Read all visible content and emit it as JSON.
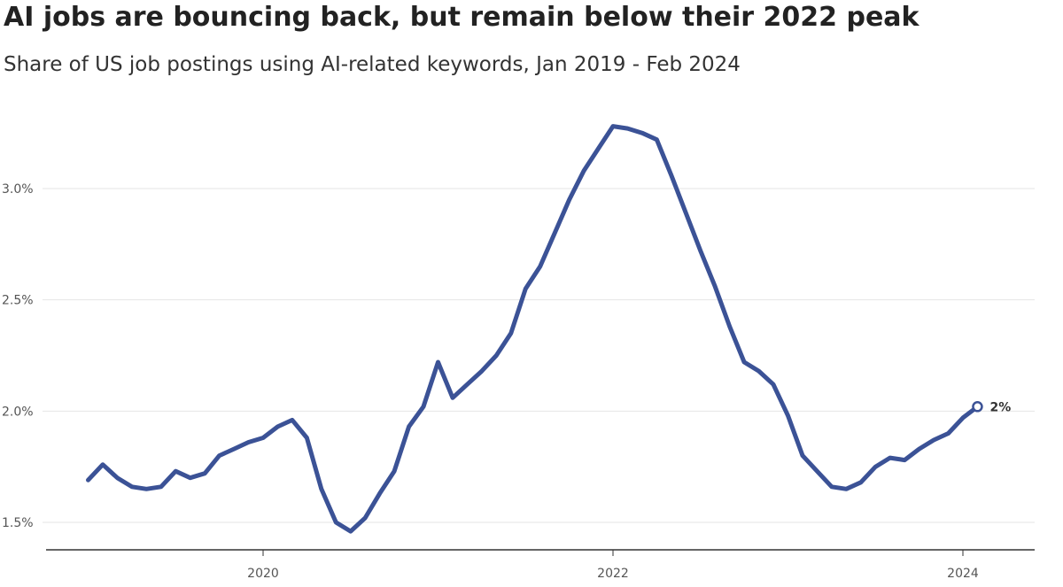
{
  "chart_data": {
    "type": "line",
    "title": "AI jobs are bouncing back, but remain below their 2022 peak",
    "subtitle": "Share of US job postings using AI-related keywords, Jan 2019 - Feb 2024",
    "xlabel": "",
    "ylabel": "",
    "x_range": [
      "2019-01",
      "2024-03"
    ],
    "ylim": [
      1.4,
      3.4
    ],
    "y_ticks": [
      {
        "value": 1.5,
        "label": "1.5%"
      },
      {
        "value": 2.0,
        "label": "2.0%"
      },
      {
        "value": 2.5,
        "label": "2.5%"
      },
      {
        "value": 3.0,
        "label": "3.0%"
      }
    ],
    "x_ticks": [
      {
        "date": "2020-01",
        "label": "2020"
      },
      {
        "date": "2022-01",
        "label": "2022"
      },
      {
        "date": "2024-01",
        "label": "2024"
      }
    ],
    "grid": "horizontal",
    "line_color": "#3b5296",
    "end_label": "2%",
    "series": [
      {
        "x": [
          "2019-01",
          "2019-02",
          "2019-03",
          "2019-04",
          "2019-05",
          "2019-06",
          "2019-07",
          "2019-08",
          "2019-09",
          "2019-10",
          "2019-11",
          "2019-12",
          "2020-01",
          "2020-02",
          "2020-03",
          "2020-04",
          "2020-05",
          "2020-06",
          "2020-07",
          "2020-08",
          "2020-09",
          "2020-10",
          "2020-11",
          "2020-12",
          "2021-01",
          "2021-02",
          "2021-03",
          "2021-04",
          "2021-05",
          "2021-06",
          "2021-07",
          "2021-08",
          "2021-09",
          "2021-10",
          "2021-11",
          "2021-12",
          "2022-01",
          "2022-02",
          "2022-03",
          "2022-04",
          "2022-05",
          "2022-06",
          "2022-07",
          "2022-08",
          "2022-09",
          "2022-10",
          "2022-11",
          "2022-12",
          "2023-01",
          "2023-02",
          "2023-03",
          "2023-04",
          "2023-05",
          "2023-06",
          "2023-07",
          "2023-08",
          "2023-09",
          "2023-10",
          "2023-11",
          "2023-12",
          "2024-01",
          "2024-02"
        ],
        "y": [
          1.69,
          1.76,
          1.7,
          1.66,
          1.65,
          1.66,
          1.73,
          1.7,
          1.72,
          1.8,
          1.83,
          1.86,
          1.88,
          1.93,
          1.96,
          1.88,
          1.65,
          1.5,
          1.46,
          1.52,
          1.63,
          1.73,
          1.93,
          2.02,
          2.22,
          2.06,
          2.12,
          2.18,
          2.25,
          2.35,
          2.55,
          2.65,
          2.8,
          2.95,
          3.08,
          3.18,
          3.28,
          3.27,
          3.25,
          3.22,
          3.06,
          2.89,
          2.72,
          2.56,
          2.38,
          2.22,
          2.18,
          2.12,
          1.98,
          1.8,
          1.73,
          1.66,
          1.65,
          1.68,
          1.75,
          1.79,
          1.78,
          1.83,
          1.87,
          1.9,
          1.97,
          2.02
        ]
      }
    ]
  }
}
